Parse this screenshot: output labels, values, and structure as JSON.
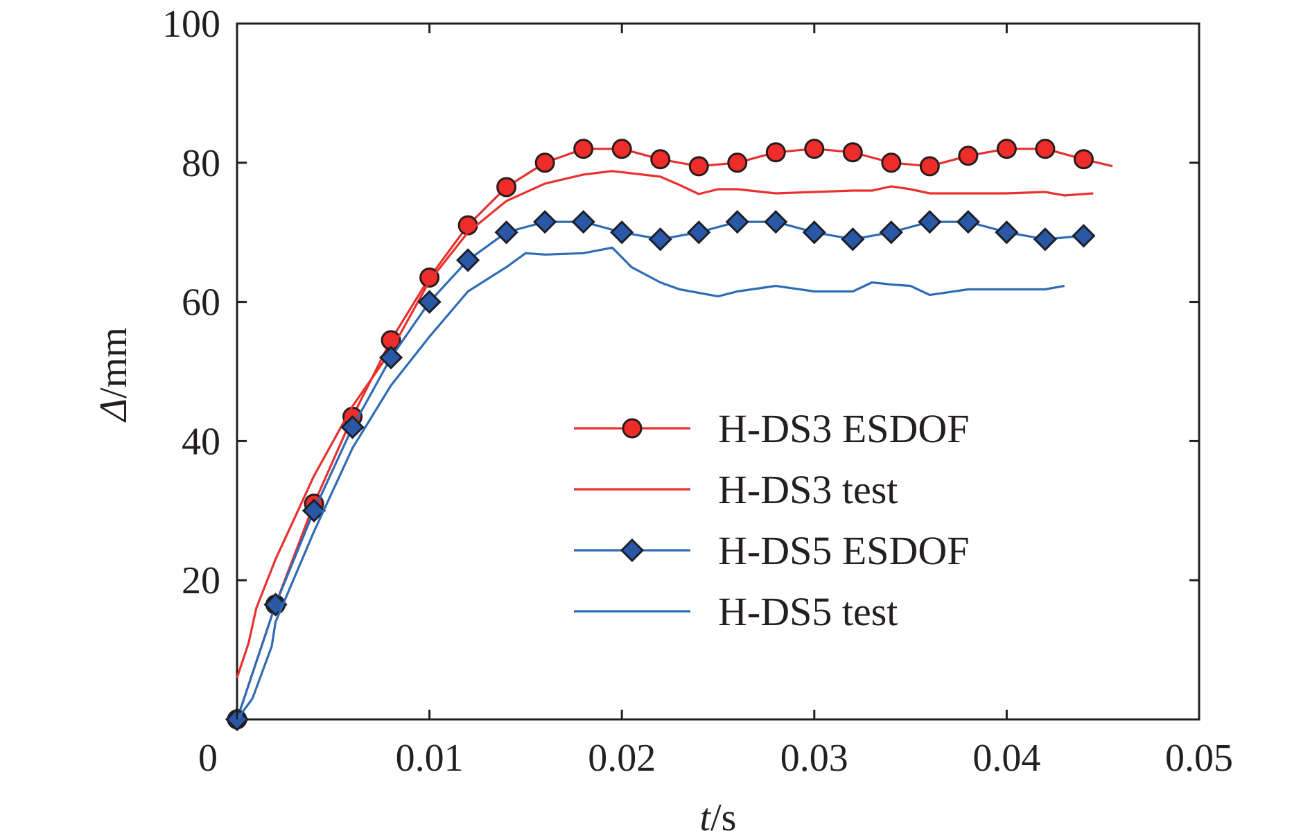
{
  "chart_data": {
    "type": "line",
    "xlabel": {
      "var": "t",
      "unit": "/s"
    },
    "ylabel": {
      "var": "Δ",
      "unit": "/mm"
    },
    "xlim": [
      0,
      0.05
    ],
    "ylim": [
      0,
      100
    ],
    "x_ticks": [
      0,
      0.01,
      0.02,
      0.03,
      0.04,
      0.05
    ],
    "x_tick_labels": [
      "0",
      "0.01",
      "0.02",
      "0.03",
      "0.04",
      "0.05"
    ],
    "y_ticks": [
      20,
      40,
      60,
      80,
      100
    ],
    "y_tick_labels": [
      "20",
      "40",
      "60",
      "80",
      "100"
    ],
    "grid": false,
    "legend_position": "center-right",
    "series": [
      {
        "name": "H-DS3 ESDOF",
        "color": "#e8312f",
        "marker": "circle",
        "marker_fill": "#ee2d2b",
        "x": [
          0,
          0.002,
          0.004,
          0.006,
          0.008,
          0.01,
          0.012,
          0.014,
          0.016,
          0.018,
          0.02,
          0.022,
          0.024,
          0.026,
          0.028,
          0.03,
          0.032,
          0.034,
          0.036,
          0.038,
          0.04,
          0.042,
          0.044,
          0.0455
        ],
        "y": [
          0,
          16.5,
          31,
          43.5,
          54.5,
          63.5,
          71,
          76.5,
          80,
          82,
          82,
          80.5,
          79.5,
          80,
          81.5,
          82,
          81.5,
          80,
          79.5,
          81,
          82,
          82,
          80.5,
          79.5
        ],
        "marker_count": 23
      },
      {
        "name": "H-DS3 test",
        "color": "#e8312f",
        "marker": "none",
        "x": [
          0,
          0.0006,
          0.001,
          0.002,
          0.004,
          0.006,
          0.008,
          0.01,
          0.012,
          0.014,
          0.016,
          0.018,
          0.0195,
          0.022,
          0.023,
          0.024,
          0.025,
          0.026,
          0.028,
          0.03,
          0.032,
          0.033,
          0.034,
          0.035,
          0.036,
          0.038,
          0.04,
          0.042,
          0.043,
          0.0445
        ],
        "y": [
          6,
          11,
          16,
          23,
          35,
          45,
          53,
          63,
          70,
          74.5,
          77,
          78.3,
          78.8,
          78,
          76.8,
          75.5,
          76.2,
          76.2,
          75.6,
          75.8,
          76,
          76,
          76.6,
          76.2,
          75.6,
          75.6,
          75.6,
          75.8,
          75.3,
          75.6
        ]
      },
      {
        "name": "H-DS5 ESDOF",
        "color": "#2f6bb5",
        "marker": "diamond",
        "marker_fill": "#2b58a6",
        "x": [
          0,
          0.002,
          0.004,
          0.006,
          0.008,
          0.01,
          0.012,
          0.014,
          0.016,
          0.018,
          0.02,
          0.022,
          0.024,
          0.026,
          0.028,
          0.03,
          0.032,
          0.034,
          0.036,
          0.038,
          0.04,
          0.042,
          0.044
        ],
        "y": [
          0,
          16.5,
          30,
          42,
          52,
          60,
          66,
          70,
          71.5,
          71.5,
          70,
          69,
          70,
          71.5,
          71.5,
          70,
          69,
          70,
          71.5,
          71.5,
          70,
          69,
          69.5
        ]
      },
      {
        "name": "H-DS5 test",
        "color": "#2f6bb5",
        "marker": "none",
        "x": [
          0,
          0.0008,
          0.0018,
          0.002,
          0.004,
          0.006,
          0.008,
          0.01,
          0.012,
          0.014,
          0.015,
          0.016,
          0.018,
          0.0195,
          0.0205,
          0.022,
          0.023,
          0.025,
          0.026,
          0.028,
          0.03,
          0.032,
          0.033,
          0.034,
          0.035,
          0.036,
          0.038,
          0.04,
          0.042,
          0.043
        ],
        "y": [
          0,
          3,
          10.5,
          14,
          27,
          39,
          48,
          55,
          61.5,
          65,
          67,
          66.8,
          67,
          67.8,
          65,
          62.8,
          61.8,
          60.8,
          61.5,
          62.3,
          61.5,
          61.5,
          62.8,
          62.5,
          62.3,
          61,
          61.8,
          61.8,
          61.8,
          62.3
        ]
      }
    ]
  }
}
